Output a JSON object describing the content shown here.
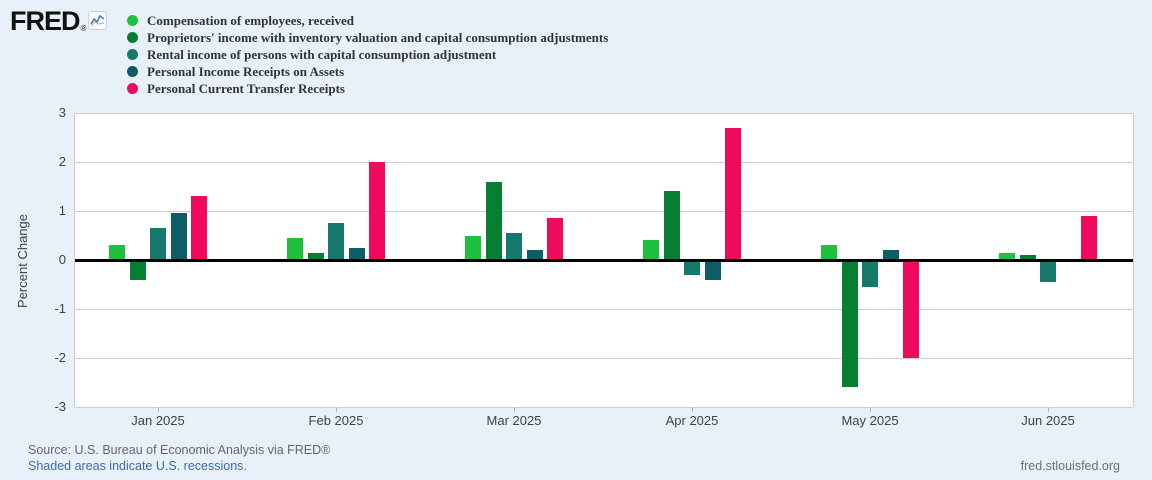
{
  "page": {
    "background": "#e8f1fa"
  },
  "header": {
    "logo_text": "FRED",
    "logo_registered": "®"
  },
  "footer": {
    "source_line": "Source: U.S. Bureau of Economic Analysis via FRED®",
    "recession_note": "Shaded areas indicate U.S. recessions.",
    "site_link": "fred.stlouisfed.org"
  },
  "chart_data": {
    "type": "bar",
    "title": "",
    "xlabel": "",
    "ylabel": "Percent Change",
    "ylim": [
      -3,
      3
    ],
    "yticks": [
      3,
      2,
      1,
      0,
      -1,
      -2,
      -3
    ],
    "grid": true,
    "legend_position": "top-left",
    "zero_line_color": "#000000",
    "categories": [
      "Jan 2025",
      "Feb 2025",
      "Mar 2025",
      "Apr 2025",
      "May 2025",
      "Jun 2025"
    ],
    "series": [
      {
        "name": "Compensation of employees, received",
        "color": "#1dc13d",
        "values": [
          0.3,
          0.45,
          0.5,
          0.4,
          0.3,
          0.15
        ]
      },
      {
        "name": "Proprietors' income with inventory valuation and capital consumption adjustments",
        "color": "#067f32",
        "values": [
          -0.4,
          0.15,
          1.6,
          1.4,
          -2.6,
          0.1
        ]
      },
      {
        "name": "Rental income of persons with capital consumption adjustment",
        "color": "#17796b",
        "values": [
          0.65,
          0.75,
          0.55,
          -0.3,
          -0.55,
          -0.45
        ]
      },
      {
        "name": "Personal Income Receipts on Assets",
        "color": "#0f5c66",
        "values": [
          0.95,
          0.25,
          0.2,
          -0.4,
          0.2,
          0
        ]
      },
      {
        "name": "Personal Current Transfer Receipts",
        "color": "#f00a5e",
        "values": [
          1.3,
          2.0,
          0.85,
          2.7,
          -2.0,
          0.9
        ]
      }
    ]
  }
}
